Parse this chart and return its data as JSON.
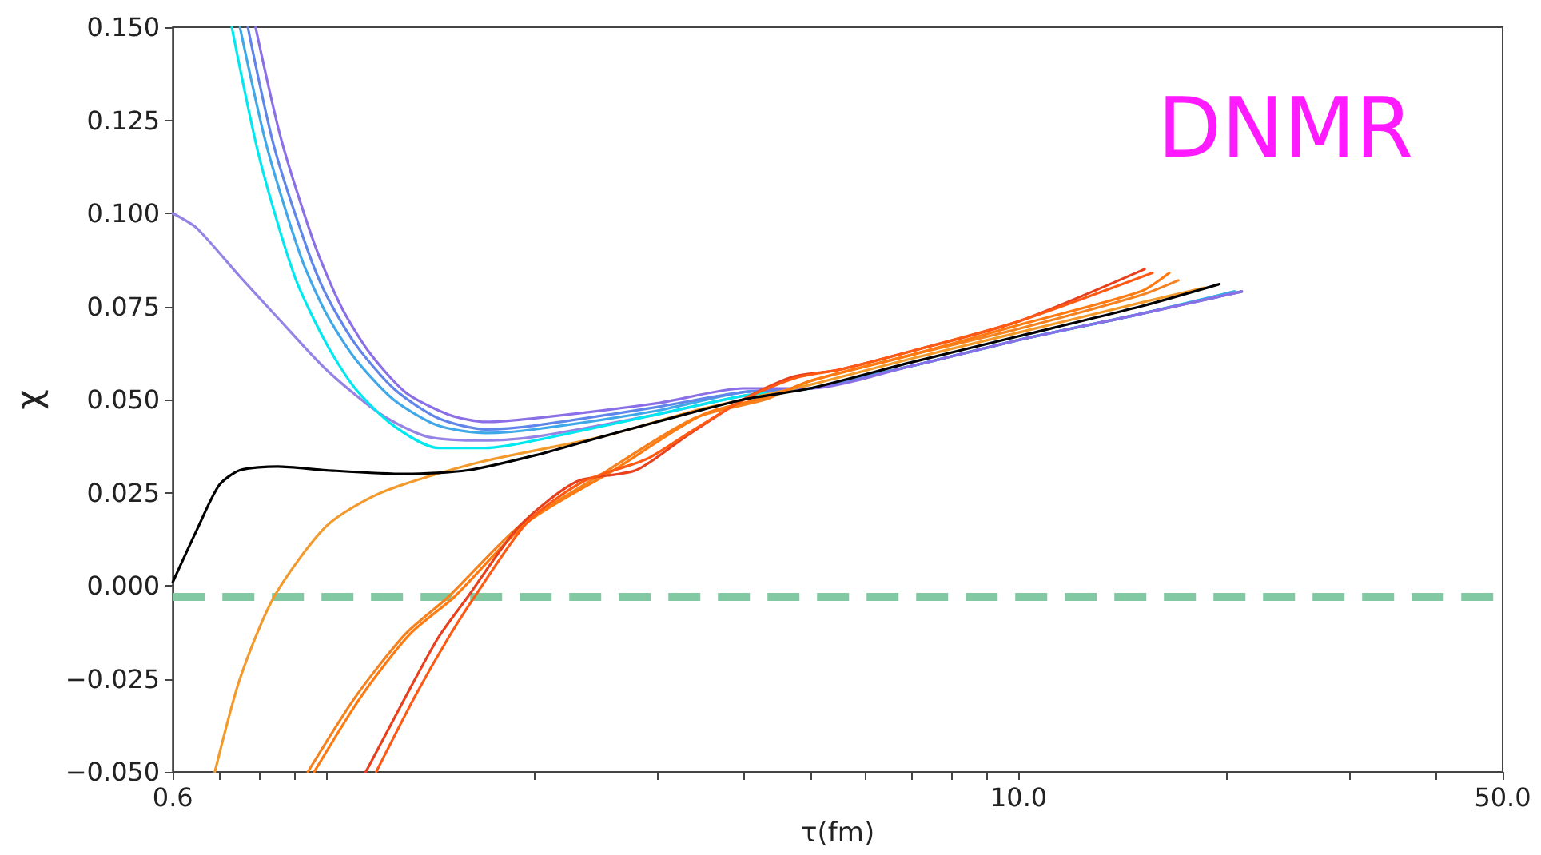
{
  "chart_data": {
    "type": "line",
    "xlabel": "τ(fm)",
    "ylabel": "χ",
    "log": "x",
    "grid": false,
    "marker": "none",
    "line_style": "solid",
    "annotations": [
      "DNMR"
    ],
    "xlim": [
      0.6,
      50
    ],
    "xticks": [
      0.6,
      {
        "value": 0.7,
        "label": null
      },
      {
        "value": 0.8,
        "label": null
      },
      {
        "value": 0.9,
        "label": null
      },
      {
        "value": 1,
        "label": null
      },
      {
        "value": 2,
        "label": null
      },
      {
        "value": 3,
        "label": null
      },
      {
        "value": 4,
        "label": null
      },
      {
        "value": 5,
        "label": null
      },
      {
        "value": 6,
        "label": null
      },
      {
        "value": 7,
        "label": null
      },
      {
        "value": 8,
        "label": null
      },
      {
        "value": 9,
        "label": null
      },
      {
        "value": 10,
        "label": "10.0"
      },
      {
        "value": 20,
        "label": null
      },
      {
        "value": 30,
        "label": null
      },
      {
        "value": 40,
        "label": null
      },
      {
        "value": 50,
        "label": "50.0"
      }
    ],
    "ylim": [
      -0.05,
      0.15
    ],
    "yticks": [
      {
        "value": -0.05,
        "label": "−0.050"
      },
      {
        "value": -0.025,
        "label": "−0.025"
      },
      {
        "value": 0,
        "label": "0.000"
      },
      {
        "value": 0.025,
        "label": "0.025"
      },
      {
        "value": 0.05,
        "label": "0.050"
      },
      {
        "value": 0.075,
        "label": "0.075"
      },
      {
        "value": 0.1,
        "label": "0.100"
      },
      {
        "value": 0.125,
        "label": "0.125"
      },
      {
        "value": 0.15,
        "label": "0.150"
      }
    ],
    "ref_lines": [
      {
        "axis": "y",
        "value": -0.003,
        "color": "#82c9a3",
        "line_style": "dashed"
      }
    ],
    "series": [
      {
        "color": "#9683e6",
        "x": [
          0.6,
          0.65,
          0.75,
          0.85,
          1.0,
          1.2,
          1.4,
          1.7,
          2,
          3,
          4,
          5,
          7,
          10,
          15,
          21
        ],
        "values": [
          0.1,
          0.096,
          0.083,
          0.072,
          0.058,
          0.046,
          0.04,
          0.039,
          0.04,
          0.046,
          0.051,
          0.053,
          0.059,
          0.066,
          0.073,
          0.079
        ]
      },
      {
        "color": "#00e8f0",
        "x": [
          0.73,
          0.8,
          0.9,
          1.0,
          1.1,
          1.25,
          1.45,
          1.7,
          2,
          3,
          4,
          5,
          7,
          10,
          15,
          20.5
        ],
        "values": [
          0.15,
          0.115,
          0.083,
          0.065,
          0.053,
          0.043,
          0.037,
          0.037,
          0.039,
          0.046,
          0.051,
          0.053,
          0.059,
          0.066,
          0.073,
          0.079
        ]
      },
      {
        "color": "#40a8e8",
        "x": [
          0.75,
          0.82,
          0.92,
          1.0,
          1.1,
          1.25,
          1.45,
          1.7,
          2,
          3,
          4,
          5,
          7,
          10,
          15,
          20.5
        ],
        "values": [
          0.15,
          0.118,
          0.088,
          0.073,
          0.061,
          0.05,
          0.043,
          0.041,
          0.042,
          0.047,
          0.052,
          0.053,
          0.059,
          0.066,
          0.073,
          0.079
        ]
      },
      {
        "color": "#5f86e8",
        "x": [
          0.77,
          0.84,
          0.94,
          1.0,
          1.1,
          1.25,
          1.45,
          1.7,
          2,
          3,
          4,
          5,
          7,
          10,
          15,
          21
        ],
        "values": [
          0.15,
          0.118,
          0.09,
          0.078,
          0.065,
          0.053,
          0.045,
          0.042,
          0.043,
          0.048,
          0.052,
          0.053,
          0.059,
          0.066,
          0.073,
          0.079
        ]
      },
      {
        "color": "#8a6fe6",
        "x": [
          0.79,
          0.86,
          0.96,
          1.05,
          1.15,
          1.3,
          1.5,
          1.7,
          2,
          3,
          4,
          5,
          7,
          10,
          15,
          21
        ],
        "values": [
          0.15,
          0.12,
          0.092,
          0.075,
          0.063,
          0.052,
          0.046,
          0.044,
          0.045,
          0.049,
          0.053,
          0.053,
          0.059,
          0.066,
          0.073,
          0.079
        ]
      },
      {
        "color": "#f39a2c",
        "x": [
          0.69,
          0.75,
          0.84,
          1.0,
          1.2,
          1.65,
          2.5,
          3.4,
          4,
          5,
          7,
          10,
          15,
          18.5
        ],
        "values": [
          -0.05,
          -0.025,
          -0.003,
          0.016,
          0.025,
          0.033,
          0.04,
          0.047,
          0.05,
          0.054,
          0.061,
          0.068,
          0.076,
          0.08
        ]
      },
      {
        "color": "#f5821f",
        "x": [
          0.94,
          1.1,
          1.3,
          1.5,
          1.9,
          2.5,
          3.4,
          4.3,
          5,
          7,
          10,
          15,
          17
        ],
        "values": [
          -0.05,
          -0.03,
          -0.013,
          -0.003,
          0.016,
          0.03,
          0.045,
          0.05,
          0.055,
          0.062,
          0.069,
          0.078,
          0.082
        ]
      },
      {
        "color": "#ff7a10",
        "x": [
          0.96,
          1.12,
          1.32,
          1.53,
          1.95,
          2.6,
          3.5,
          4.4,
          5,
          7,
          10,
          15,
          16.5
        ],
        "values": [
          -0.05,
          -0.03,
          -0.013,
          -0.003,
          0.017,
          0.031,
          0.046,
          0.051,
          0.055,
          0.062,
          0.07,
          0.079,
          0.084
        ]
      },
      {
        "color": "#e8401c",
        "x": [
          1.14,
          1.3,
          1.45,
          1.6,
          1.9,
          2.3,
          2.8,
          3.3,
          4,
          4.7,
          5.5,
          7,
          10,
          15.2
        ],
        "values": [
          -0.05,
          -0.03,
          -0.014,
          -0.003,
          0.016,
          0.028,
          0.031,
          0.04,
          0.05,
          0.056,
          0.058,
          0.063,
          0.071,
          0.085
        ]
      },
      {
        "color": "#ff5a14",
        "x": [
          1.18,
          1.34,
          1.5,
          1.65,
          1.95,
          2.35,
          2.9,
          3.4,
          4.1,
          4.8,
          5.5,
          7,
          10,
          15.6
        ],
        "values": [
          -0.05,
          -0.03,
          -0.014,
          -0.002,
          0.017,
          0.028,
          0.034,
          0.042,
          0.051,
          0.056,
          0.058,
          0.063,
          0.071,
          0.084
        ]
      },
      {
        "color": "#000000",
        "x": [
          0.6,
          0.65,
          0.7,
          0.75,
          0.85,
          1.0,
          1.3,
          1.6,
          2.0,
          2.5,
          3.0,
          4.0,
          5,
          7,
          10,
          15,
          19.5
        ],
        "values": [
          0.001,
          0.015,
          0.027,
          0.031,
          0.032,
          0.031,
          0.03,
          0.031,
          0.035,
          0.04,
          0.044,
          0.05,
          0.053,
          0.06,
          0.067,
          0.075,
          0.081
        ]
      }
    ]
  }
}
